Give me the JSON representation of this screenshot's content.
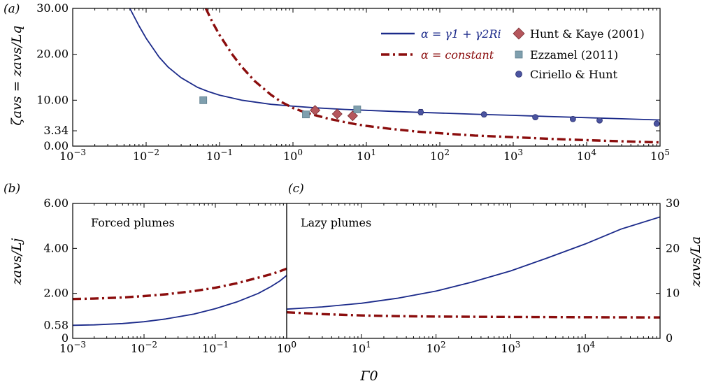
{
  "colors": {
    "blue": "#1b2a8a",
    "red": "#8b0d0d",
    "diamond": "#b5565c",
    "square": "#7f9fae",
    "circle": "#4b54a0"
  },
  "chart_data": [
    {
      "type": "line",
      "panel_label": "(a)",
      "ylabel": "ζavs = zavs/Lq",
      "xscale": "log",
      "xlim": [
        0.001,
        100000
      ],
      "ylim": [
        0,
        30
      ],
      "xticks": [
        "10−3",
        "10−2",
        "10−1",
        "100",
        "101",
        "102",
        "103",
        "104",
        "105"
      ],
      "yticks": [
        "30.00",
        "20.00",
        "10.00",
        "3.34",
        "0.00"
      ],
      "ytick_values": [
        30,
        20,
        10,
        3.34,
        0
      ],
      "legend": {
        "position": "top-right",
        "entries": [
          "α = γ1 + γ2Ri",
          "α = constant",
          "Hunt & Kaye (2001)",
          "Ezzamel (2011)",
          "Ciriello & Hunt"
        ]
      },
      "series": [
        {
          "name": "α = γ1 + γ2Ri",
          "style": "solid",
          "x": [
            0.006,
            0.008,
            0.01,
            0.015,
            0.02,
            0.03,
            0.05,
            0.07,
            0.1,
            0.2,
            0.5,
            1,
            2,
            5,
            10,
            30,
            100,
            300,
            1000,
            3000,
            10000,
            30000,
            100000
          ],
          "y": [
            30,
            26.2,
            23.5,
            19.4,
            17.2,
            14.9,
            12.8,
            11.9,
            11.1,
            10.0,
            9.1,
            8.7,
            8.35,
            8.0,
            7.8,
            7.5,
            7.2,
            6.95,
            6.7,
            6.45,
            6.2,
            5.95,
            5.7
          ]
        },
        {
          "name": "α = constant",
          "style": "dash-dot",
          "x": [
            0.065,
            0.08,
            0.1,
            0.15,
            0.2,
            0.3,
            0.5,
            0.7,
            1,
            1.5,
            2,
            3,
            5,
            7,
            10,
            20,
            50,
            100,
            300,
            1000,
            3000,
            10000,
            30000,
            100000
          ],
          "y": [
            30,
            27.0,
            24.2,
            19.9,
            17.3,
            14.2,
            11.2,
            9.6,
            8.3,
            7.3,
            6.75,
            6.0,
            5.25,
            4.8,
            4.4,
            3.8,
            3.15,
            2.8,
            2.3,
            1.95,
            1.6,
            1.3,
            1.05,
            0.8
          ]
        },
        {
          "name": "Hunt & Kaye (2001)",
          "marker": "diamond",
          "x": [
            2,
            4,
            6.5
          ],
          "y": [
            7.8,
            7.0,
            6.6
          ]
        },
        {
          "name": "Ezzamel (2011)",
          "marker": "square",
          "x": [
            0.06,
            1.5,
            7.5
          ],
          "y": [
            10.0,
            6.9,
            8.0
          ]
        },
        {
          "name": "Ciriello & Hunt",
          "marker": "circle",
          "x": [
            55,
            400,
            2000,
            6500,
            15000,
            90000
          ],
          "y": [
            7.4,
            6.9,
            6.3,
            5.9,
            5.6,
            4.9
          ],
          "err": [
            0.6,
            0.5,
            0.4,
            0.35,
            0.3,
            0.3
          ]
        }
      ]
    },
    {
      "type": "line",
      "panel_label": "(b)",
      "annotation": "Forced plumes",
      "ylabel": "zavs/Lj",
      "xscale": "log",
      "xlim": [
        0.001,
        1
      ],
      "ylim": [
        0,
        6
      ],
      "xticks": [
        "10−3",
        "10−2",
        "10−1",
        "100"
      ],
      "yticks": [
        "6.00",
        "4.00",
        "2.00",
        "0.58",
        "0"
      ],
      "ytick_values": [
        6,
        4,
        2,
        0.58,
        0
      ],
      "series": [
        {
          "name": "α = γ1 + γ2Ri",
          "style": "solid",
          "x": [
            0.001,
            0.002,
            0.005,
            0.01,
            0.02,
            0.05,
            0.1,
            0.2,
            0.4,
            0.6,
            0.8,
            1
          ],
          "y": [
            0.58,
            0.6,
            0.66,
            0.74,
            0.86,
            1.08,
            1.32,
            1.62,
            2.0,
            2.3,
            2.55,
            2.8
          ]
        },
        {
          "name": "α = constant",
          "style": "dash-dot",
          "x": [
            0.001,
            0.002,
            0.005,
            0.01,
            0.02,
            0.05,
            0.1,
            0.2,
            0.4,
            0.6,
            0.8,
            1
          ],
          "y": [
            1.75,
            1.77,
            1.82,
            1.88,
            1.96,
            2.1,
            2.25,
            2.45,
            2.7,
            2.85,
            2.98,
            3.1
          ]
        }
      ]
    },
    {
      "type": "line",
      "panel_label": "(c)",
      "annotation": "Lazy plumes",
      "xlabel": "Γ0",
      "ylabel": "zavs/La",
      "xscale": "log",
      "xlim": [
        1,
        100000
      ],
      "ylim": [
        0,
        30
      ],
      "xticks": [
        "100",
        "101",
        "102",
        "103",
        "104"
      ],
      "yticks": [
        "30",
        "20",
        "10",
        "0"
      ],
      "ytick_values": [
        30,
        20,
        10,
        0
      ],
      "series": [
        {
          "name": "α = γ1 + γ2Ri",
          "style": "solid",
          "x": [
            1,
            3,
            10,
            30,
            100,
            300,
            1000,
            3000,
            10000,
            30000,
            100000
          ],
          "y": [
            6.5,
            7.0,
            7.8,
            8.9,
            10.5,
            12.5,
            15.0,
            17.8,
            21.0,
            24.3,
            27.0
          ]
        },
        {
          "name": "α = constant",
          "style": "dash-dot",
          "x": [
            1,
            3,
            10,
            30,
            100,
            1000,
            10000,
            100000
          ],
          "y": [
            5.8,
            5.4,
            5.1,
            4.95,
            4.85,
            4.75,
            4.7,
            4.65
          ]
        }
      ]
    }
  ]
}
